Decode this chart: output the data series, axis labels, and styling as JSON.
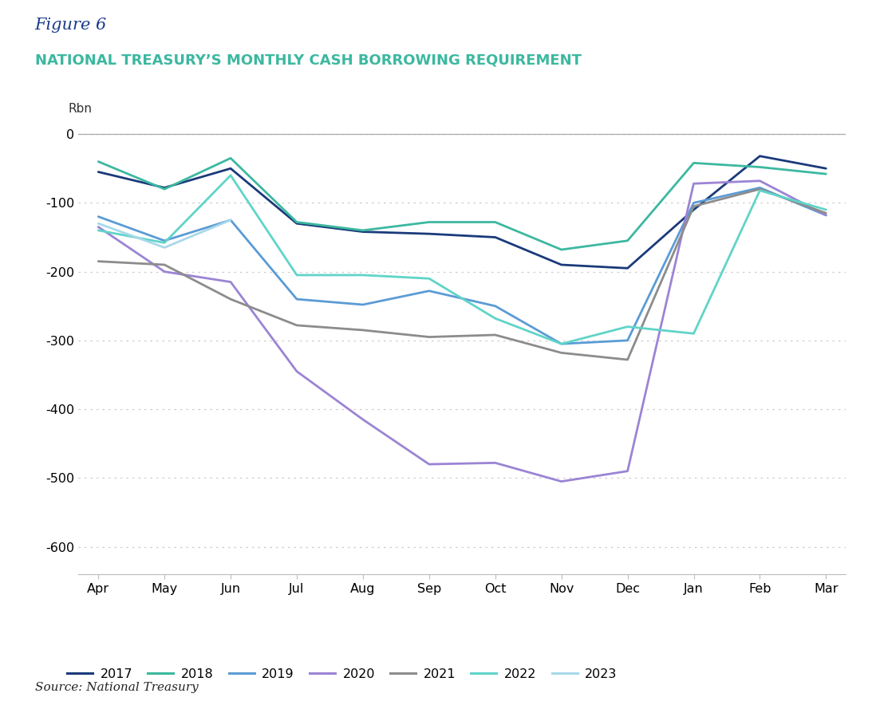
{
  "title_fig": "Figure 6",
  "title_main": "NATIONAL TREASURY’S MONTHLY CASH BORROWING REQUIREMENT",
  "ylabel": "Rbn",
  "source": "Source: National Treasury",
  "months": [
    "Apr",
    "May",
    "Jun",
    "Jul",
    "Aug",
    "Sep",
    "Oct",
    "Nov",
    "Dec",
    "Jan",
    "Feb",
    "Mar"
  ],
  "series": {
    "2017": {
      "color": "#1a3a7a",
      "data": [
        -55,
        -78,
        -50,
        -130,
        -142,
        -145,
        -150,
        -190,
        -195,
        -110,
        -32,
        -50
      ]
    },
    "2018": {
      "color": "#3cb8a0",
      "data": [
        -40,
        -80,
        -35,
        -128,
        -140,
        -128,
        -128,
        -168,
        -155,
        -42,
        -48,
        -58
      ]
    },
    "2019": {
      "color": "#5b9bd5",
      "data": [
        -120,
        -155,
        -125,
        -240,
        -248,
        -228,
        -250,
        -305,
        -300,
        -100,
        -78,
        -118
      ]
    },
    "2020": {
      "color": "#9b84d4",
      "data": [
        -135,
        -200,
        -215,
        -345,
        -415,
        -480,
        -478,
        -505,
        -490,
        -72,
        -68,
        -118
      ]
    },
    "2021": {
      "color": "#8c8c8c",
      "data": [
        -185,
        -190,
        -240,
        -278,
        -285,
        -295,
        -292,
        -318,
        -328,
        -105,
        -80,
        -115
      ]
    },
    "2022": {
      "color": "#60d4c8",
      "data": [
        -140,
        -158,
        -60,
        -205,
        -205,
        -210,
        -268,
        -305,
        -280,
        -290,
        -82,
        -110
      ]
    },
    "2023": {
      "color": "#a8d8ea",
      "data": [
        -130,
        -165,
        -125,
        null,
        null,
        null,
        null,
        null,
        null,
        null,
        null,
        null
      ]
    }
  },
  "ylim": [
    -640,
    30
  ],
  "yticks": [
    0,
    -100,
    -200,
    -300,
    -400,
    -500,
    -600
  ],
  "grid_color": "#cccccc",
  "bg_color": "#ffffff",
  "fig_title_color": "#1a3a8a",
  "main_title_color": "#3cb8a0",
  "legend_order": [
    "2017",
    "2018",
    "2019",
    "2020",
    "2021",
    "2022",
    "2023"
  ]
}
